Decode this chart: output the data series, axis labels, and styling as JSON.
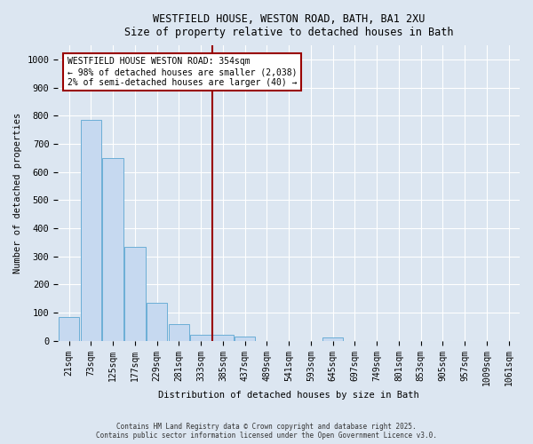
{
  "title_line1": "WESTFIELD HOUSE, WESTON ROAD, BATH, BA1 2XU",
  "title_line2": "Size of property relative to detached houses in Bath",
  "xlabel": "Distribution of detached houses by size in Bath",
  "ylabel": "Number of detached properties",
  "bar_labels": [
    "21sqm",
    "73sqm",
    "125sqm",
    "177sqm",
    "229sqm",
    "281sqm",
    "333sqm",
    "385sqm",
    "437sqm",
    "489sqm",
    "541sqm",
    "593sqm",
    "645sqm",
    "697sqm",
    "749sqm",
    "801sqm",
    "853sqm",
    "905sqm",
    "957sqm",
    "1009sqm",
    "1061sqm"
  ],
  "bar_values": [
    85,
    785,
    650,
    335,
    135,
    60,
    22,
    22,
    15,
    0,
    0,
    0,
    10,
    0,
    0,
    0,
    0,
    0,
    0,
    0,
    0
  ],
  "bar_color": "#c6d9f0",
  "bar_edge_color": "#6baed6",
  "background_color": "#dce6f1",
  "grid_color": "#ffffff",
  "vline_x": 6.5,
  "vline_color": "#990000",
  "ylim": [
    0,
    1050
  ],
  "yticks": [
    0,
    100,
    200,
    300,
    400,
    500,
    600,
    700,
    800,
    900,
    1000
  ],
  "annotation_text": "WESTFIELD HOUSE WESTON ROAD: 354sqm\n← 98% of detached houses are smaller (2,038)\n2% of semi-detached houses are larger (40) →",
  "annotation_box_color": "#ffffff",
  "annotation_box_edge": "#990000",
  "footer_line1": "Contains HM Land Registry data © Crown copyright and database right 2025.",
  "footer_line2": "Contains public sector information licensed under the Open Government Licence v3.0."
}
